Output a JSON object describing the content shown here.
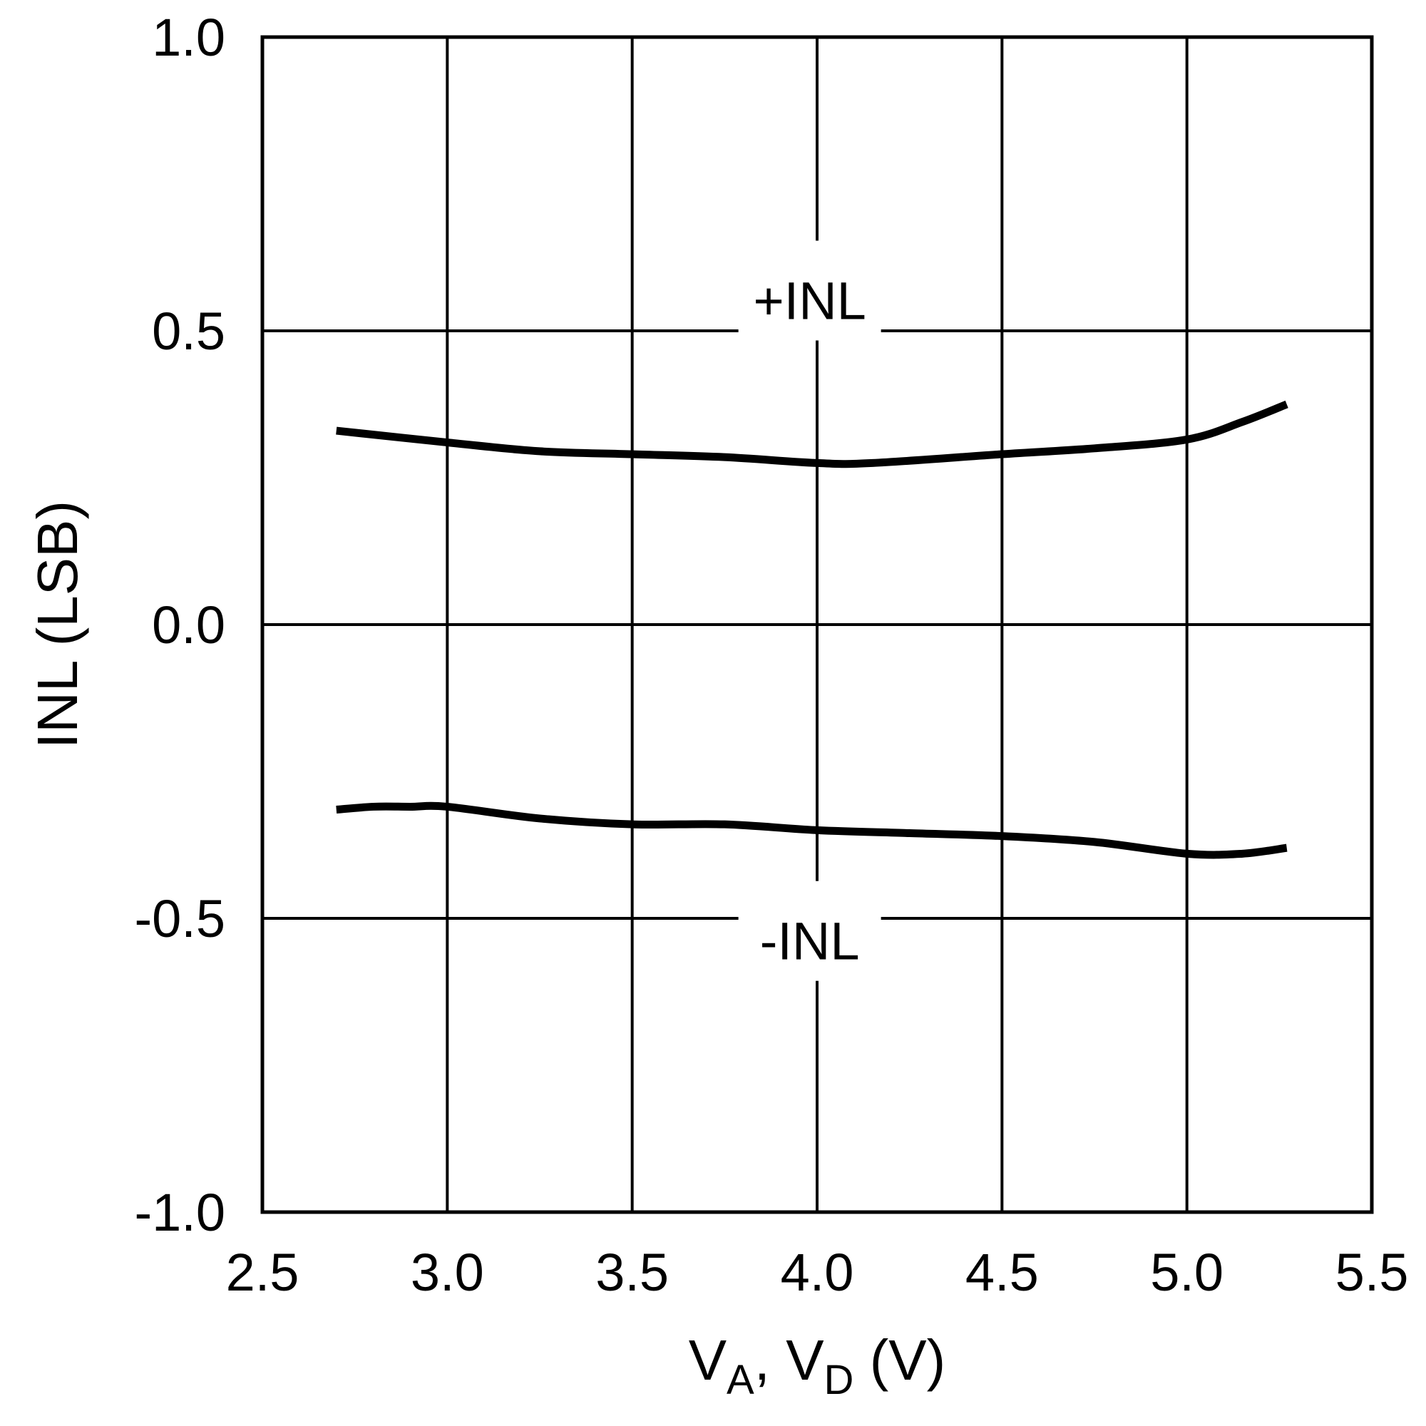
{
  "chart_data": {
    "type": "line",
    "title": "",
    "xlabel": {
      "main": "V",
      "sub1": "A",
      "mid": ", V",
      "sub2": "D",
      "tail": " (V)"
    },
    "ylabel": "INL (LSB)",
    "xlim": [
      2.5,
      5.5
    ],
    "ylim": [
      -1.0,
      1.0
    ],
    "xticks": [
      "2.5",
      "3.0",
      "3.5",
      "4.0",
      "4.5",
      "5.0",
      "5.5"
    ],
    "yticks": [
      "1.0",
      "0.5",
      "0.0",
      "-0.5",
      "-1.0"
    ],
    "grid": true,
    "legend": "none",
    "colors": {
      "line": "#000000",
      "grid": "#000000",
      "background": "#ffffff"
    },
    "series": [
      {
        "name": "+INL",
        "x": [
          2.7,
          3.0,
          3.25,
          3.5,
          3.75,
          4.0,
          4.15,
          4.5,
          4.75,
          5.0,
          5.15,
          5.27
        ],
        "y": [
          0.33,
          0.31,
          0.295,
          0.29,
          0.285,
          0.275,
          0.275,
          0.29,
          0.3,
          0.315,
          0.345,
          0.375
        ]
      },
      {
        "name": "-INL",
        "x": [
          2.7,
          2.8,
          2.9,
          3.0,
          3.25,
          3.5,
          3.75,
          4.0,
          4.25,
          4.5,
          4.75,
          5.0,
          5.15,
          5.27
        ],
        "y": [
          -0.315,
          -0.31,
          -0.31,
          -0.31,
          -0.33,
          -0.34,
          -0.34,
          -0.35,
          -0.355,
          -0.36,
          -0.37,
          -0.39,
          -0.39,
          -0.38
        ]
      }
    ],
    "annotations": [
      {
        "text": "+INL",
        "x": 3.98,
        "y": 0.52
      },
      {
        "text": "-INL",
        "x": 3.98,
        "y": -0.57
      }
    ]
  }
}
